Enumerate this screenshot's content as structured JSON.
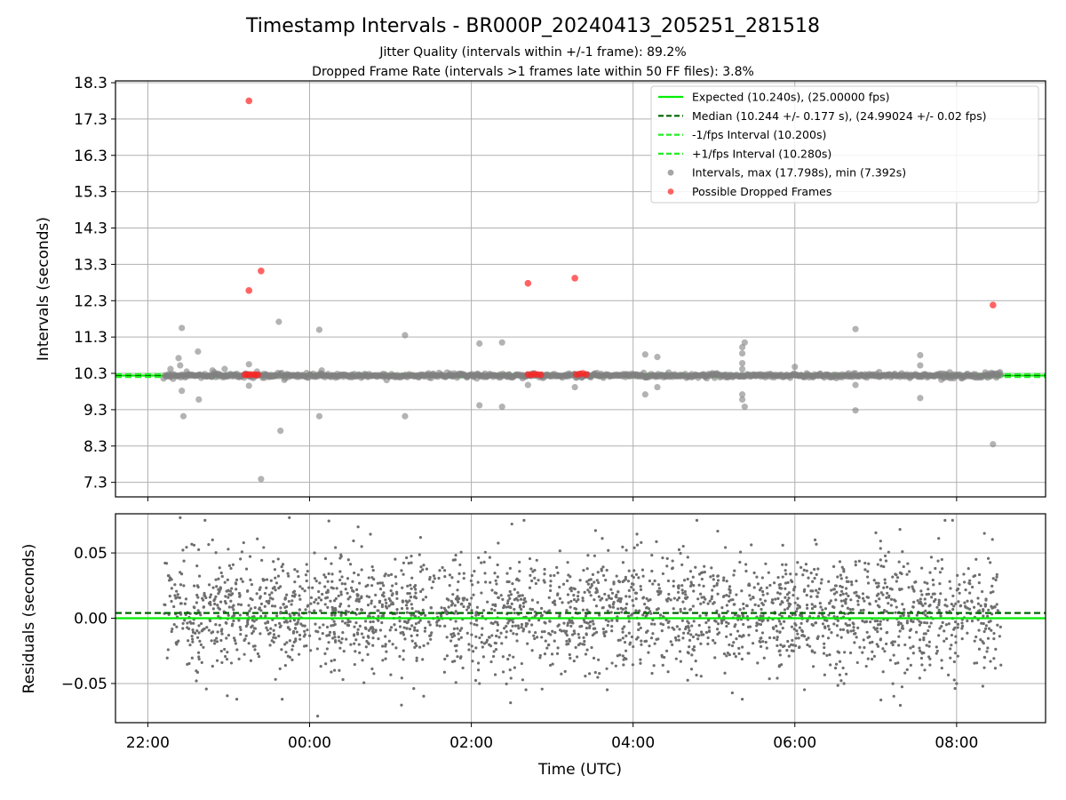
{
  "figure": {
    "title": "Timestamp Intervals - BR000P_20240413_205251_281518",
    "subtitle_1": "Jitter Quality (intervals within +/-1 frame): 89.2%",
    "subtitle_2": "Dropped Frame Rate (intervals >1 frames late within 50 FF files): 3.8%",
    "xlabel": "Time (UTC)"
  },
  "colors": {
    "expected": "#00ee00",
    "median": "#006400",
    "interval_band": "#22ee22",
    "intervals_point": "#808080",
    "dropped_point": "#ff2222",
    "residual_point": "#6e6e6e",
    "grid": "#b0b0b0"
  },
  "chart_data": [
    {
      "type": "scatter",
      "panel": "top",
      "ylabel": "Intervals (seconds)",
      "x_axis": {
        "unit": "hours since 00:00 UTC",
        "xlim": [
          -2.4,
          9.1
        ],
        "ticks": [
          -2,
          0,
          2,
          4,
          6,
          8
        ],
        "tick_labels": [
          "22:00",
          "00:00",
          "02:00",
          "04:00",
          "06:00",
          "08:00"
        ]
      },
      "ylim": [
        6.9,
        18.35
      ],
      "yticks": [
        7.3,
        8.3,
        9.3,
        10.3,
        11.3,
        12.3,
        13.3,
        14.3,
        15.3,
        16.3,
        17.3,
        18.3
      ],
      "ytick_labels": [
        "7.3",
        "8.3",
        "9.3",
        "10.3",
        "11.3",
        "12.3",
        "13.3",
        "14.3",
        "15.3",
        "16.3",
        "17.3",
        "18.3"
      ],
      "grid": true,
      "legend_position": "upper right",
      "hlines": [
        {
          "name": "Expected (10.240s), (25.00000 fps)",
          "y": 10.24,
          "style": "solid",
          "color_key": "expected"
        },
        {
          "name": "Median (10.244 +/- 0.177 s), (24.99024 +/- 0.02 fps)",
          "y": 10.244,
          "style": "dashed",
          "color_key": "median"
        },
        {
          "name": "-1/fps Interval (10.200s)",
          "y": 10.2,
          "style": "dashed",
          "color_key": "interval_band"
        },
        {
          "name": "+1/fps Interval (10.280s)",
          "y": 10.28,
          "style": "dashed",
          "color_key": "interval_band"
        }
      ],
      "series": [
        {
          "name": "Intervals, max (17.798s), min (7.392s)",
          "color_key": "intervals_point",
          "x_range": [
            -1.8,
            8.55
          ],
          "y_center": 10.24,
          "points": [
            [
              -1.72,
              10.42
            ],
            [
              -1.62,
              10.72
            ],
            [
              -1.6,
              10.52
            ],
            [
              -1.58,
              9.82
            ],
            [
              -1.58,
              11.55
            ],
            [
              -1.56,
              9.12
            ],
            [
              -1.52,
              10.35
            ],
            [
              -1.38,
              10.9
            ],
            [
              -1.37,
              9.58
            ],
            [
              -1.2,
              10.38
            ],
            [
              -1.05,
              10.42
            ],
            [
              -0.75,
              10.55
            ],
            [
              -0.75,
              9.96
            ],
            [
              -0.65,
              10.35
            ],
            [
              -0.38,
              11.72
            ],
            [
              -0.36,
              8.72
            ],
            [
              0.15,
              10.38
            ],
            [
              -0.6,
              7.39
            ],
            [
              0.12,
              11.5
            ],
            [
              0.12,
              9.12
            ],
            [
              1.18,
              11.35
            ],
            [
              1.18,
              9.12
            ],
            [
              2.1,
              11.12
            ],
            [
              2.1,
              9.42
            ],
            [
              2.38,
              11.15
            ],
            [
              2.38,
              9.38
            ],
            [
              2.7,
              9.98
            ],
            [
              3.28,
              9.92
            ],
            [
              4.15,
              10.82
            ],
            [
              4.15,
              9.72
            ],
            [
              4.3,
              10.75
            ],
            [
              4.3,
              9.92
            ],
            [
              5.35,
              11.02
            ],
            [
              5.35,
              9.72
            ],
            [
              5.38,
              11.15
            ],
            [
              5.38,
              9.38
            ],
            [
              5.35,
              9.58
            ],
            [
              5.35,
              10.58
            ],
            [
              5.35,
              10.85
            ],
            [
              5.35,
              10.42
            ],
            [
              6.0,
              10.48
            ],
            [
              6.75,
              11.52
            ],
            [
              6.75,
              9.98
            ],
            [
              6.75,
              9.28
            ],
            [
              7.55,
              10.8
            ],
            [
              7.55,
              9.62
            ],
            [
              7.55,
              10.52
            ],
            [
              8.45,
              8.35
            ]
          ]
        },
        {
          "name": "Possible Dropped Frames",
          "color_key": "dropped_point",
          "points": [
            [
              -0.75,
              17.8
            ],
            [
              -0.75,
              12.58
            ],
            [
              -0.6,
              13.12
            ],
            [
              2.7,
              12.78
            ],
            [
              3.28,
              12.92
            ],
            [
              8.45,
              12.18
            ],
            [
              -0.8,
              10.26
            ],
            [
              -0.77,
              10.27
            ],
            [
              -0.74,
              10.26
            ],
            [
              -0.7,
              10.27
            ],
            [
              -0.67,
              10.26
            ],
            [
              -0.64,
              10.26
            ],
            [
              2.7,
              10.27
            ],
            [
              2.74,
              10.26
            ],
            [
              2.78,
              10.28
            ],
            [
              2.82,
              10.27
            ],
            [
              2.86,
              10.26
            ],
            [
              3.3,
              10.27
            ],
            [
              3.34,
              10.28
            ],
            [
              3.38,
              10.3
            ],
            [
              3.42,
              10.27
            ]
          ]
        }
      ]
    },
    {
      "type": "scatter",
      "panel": "bottom",
      "ylabel": "Residuals (seconds)",
      "x_axis": {
        "unit": "hours since 00:00 UTC",
        "xlim": [
          -2.4,
          9.1
        ],
        "ticks": [
          -2,
          0,
          2,
          4,
          6,
          8
        ],
        "tick_labels": [
          "22:00",
          "00:00",
          "02:00",
          "04:00",
          "06:00",
          "08:00"
        ]
      },
      "ylim": [
        -0.08,
        0.08
      ],
      "yticks": [
        -0.05,
        0.0,
        0.05
      ],
      "ytick_labels": [
        "−0.05",
        "0.00",
        "0.05"
      ],
      "grid": true,
      "hlines": [
        {
          "y": 0.0,
          "style": "solid",
          "color_key": "expected"
        },
        {
          "y": 0.004,
          "style": "dashed",
          "color_key": "median"
        }
      ],
      "series": [
        {
          "name": "residuals",
          "color_key": "residual_point",
          "x_range": [
            -1.8,
            8.55
          ],
          "y_spread_sd": 0.022,
          "points": [
            [
              -1.6,
              0.077
            ],
            [
              -0.25,
              0.077
            ],
            [
              0.6,
              0.07
            ],
            [
              -1.4,
              -0.048
            ],
            [
              0.1,
              -0.075
            ],
            [
              -0.9,
              -0.062
            ],
            [
              5.35,
              -0.062
            ],
            [
              2.1,
              -0.05
            ],
            [
              8.0,
              -0.05
            ],
            [
              7.3,
              0.068
            ],
            [
              7.95,
              0.075
            ],
            [
              -1.2,
              0.06
            ],
            [
              4.1,
              0.058
            ],
            [
              6.25,
              0.06
            ]
          ]
        }
      ]
    }
  ]
}
